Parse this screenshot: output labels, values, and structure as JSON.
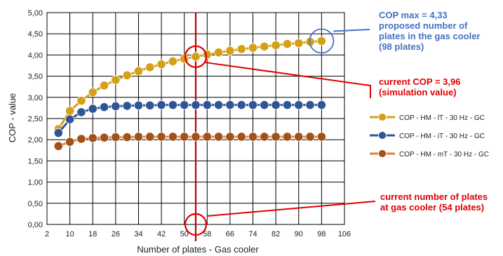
{
  "chart_data": {
    "type": "line",
    "title": "",
    "xlabel": "Number of plates - Gas cooler",
    "ylabel": "COP - value",
    "xlim": [
      2,
      106
    ],
    "ylim": [
      0,
      5
    ],
    "x_ticks": [
      "2",
      "10",
      "18",
      "26",
      "34",
      "42",
      "50",
      "58",
      "66",
      "74",
      "82",
      "90",
      "98",
      "106"
    ],
    "y_ticks": [
      "0,00",
      "0,50",
      "1,00",
      "1,50",
      "2,00",
      "2,50",
      "3,00",
      "3,50",
      "4,00",
      "4,50",
      "5,00"
    ],
    "grid": true,
    "legend_position": "right",
    "x": [
      6,
      10,
      14,
      18,
      22,
      26,
      30,
      34,
      38,
      42,
      46,
      50,
      54,
      58,
      62,
      66,
      70,
      74,
      78,
      82,
      86,
      90,
      94,
      98
    ],
    "series": [
      {
        "name": "COP - HM - lT - 30 Hz - GC",
        "color": "#d4a017",
        "values": [
          2.25,
          2.68,
          2.92,
          3.12,
          3.28,
          3.41,
          3.52,
          3.62,
          3.71,
          3.78,
          3.85,
          3.91,
          3.96,
          4.01,
          4.06,
          4.1,
          4.14,
          4.17,
          4.2,
          4.23,
          4.26,
          4.28,
          4.31,
          4.33
        ]
      },
      {
        "name": "COP - HM - iT - 30 Hz - GC",
        "color": "#2f5597",
        "values": [
          2.16,
          2.48,
          2.65,
          2.73,
          2.77,
          2.79,
          2.8,
          2.81,
          2.81,
          2.82,
          2.82,
          2.82,
          2.82,
          2.82,
          2.82,
          2.82,
          2.82,
          2.82,
          2.82,
          2.82,
          2.82,
          2.82,
          2.82,
          2.82
        ]
      },
      {
        "name": "COP - HM - mT - 30 Hz - GC",
        "color": "#a0521a",
        "line_color": "#ed7d31",
        "values": [
          1.85,
          1.95,
          2.02,
          2.04,
          2.05,
          2.06,
          2.06,
          2.07,
          2.07,
          2.07,
          2.07,
          2.07,
          2.07,
          2.07,
          2.07,
          2.07,
          2.07,
          2.07,
          2.07,
          2.07,
          2.07,
          2.07,
          2.07,
          2.07
        ]
      }
    ],
    "reference_line": {
      "x": 54,
      "color": "#c00000"
    },
    "annotations": {
      "cop_max": {
        "lines": [
          "COP max = 4,33",
          "proposed number of",
          "plates in the gas cooler",
          "(98 plates)"
        ],
        "color": "#4472c4",
        "target": {
          "x": 98,
          "y": 4.33
        }
      },
      "current_cop": {
        "lines": [
          "current COP = 3,96",
          "(simulation value)"
        ],
        "color": "#e00000",
        "target": {
          "x": 54,
          "y": 3.96
        }
      },
      "current_plates": {
        "lines": [
          "current number of plates",
          "at gas cooler (54 plates)"
        ],
        "color": "#e00000",
        "target": {
          "x": 54,
          "y": 0
        }
      }
    }
  }
}
